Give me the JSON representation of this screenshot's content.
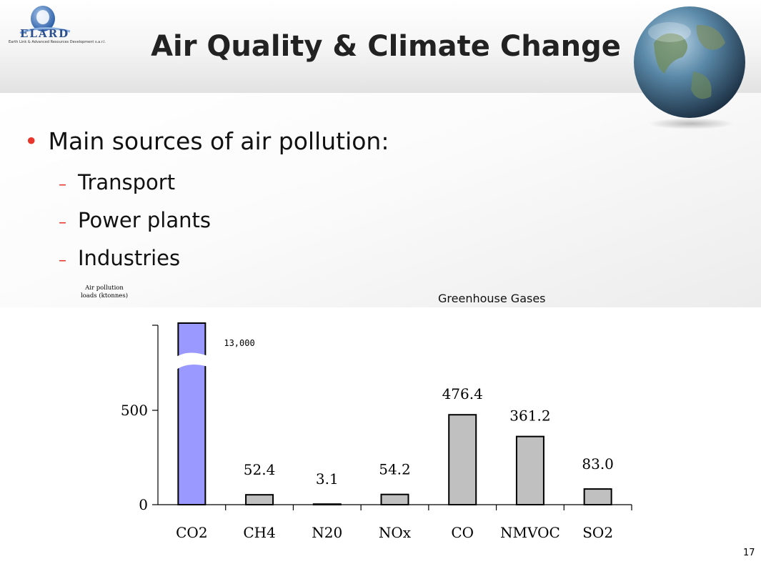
{
  "logo": {
    "name": "ELARD",
    "subtitle": "Earth Link & Advanced Resources Development s.a.r.l."
  },
  "slide": {
    "title": "Air Quality & Climate Change",
    "main_bullet": "Main sources of air pollution:",
    "sub_bullets": [
      "Transport",
      "Power plants",
      "Industries"
    ],
    "page_number": "17"
  },
  "colors": {
    "accent": "#e8362c",
    "co2_bar": "#9999ff",
    "bar": "#c0c0c0"
  },
  "chart_data": {
    "type": "bar",
    "title": "Greenhouse Gases",
    "ylabel": "Air pollution loads (ktonnes)",
    "xlabel": "",
    "categories": [
      "CO2",
      "CH4",
      "N20",
      "NOx",
      "CO",
      "NMVOC",
      "SO2"
    ],
    "values": [
      13000,
      52.4,
      3.1,
      54.2,
      476.4,
      361.2,
      83.0
    ],
    "value_labels": [
      "13,000",
      "52.4",
      "3.1",
      "54.2",
      "476.4",
      "361.2",
      "83.0"
    ],
    "ylim": [
      0,
      950
    ],
    "yticks": [
      0,
      500
    ],
    "axis_break": "CO2",
    "grid": false
  }
}
